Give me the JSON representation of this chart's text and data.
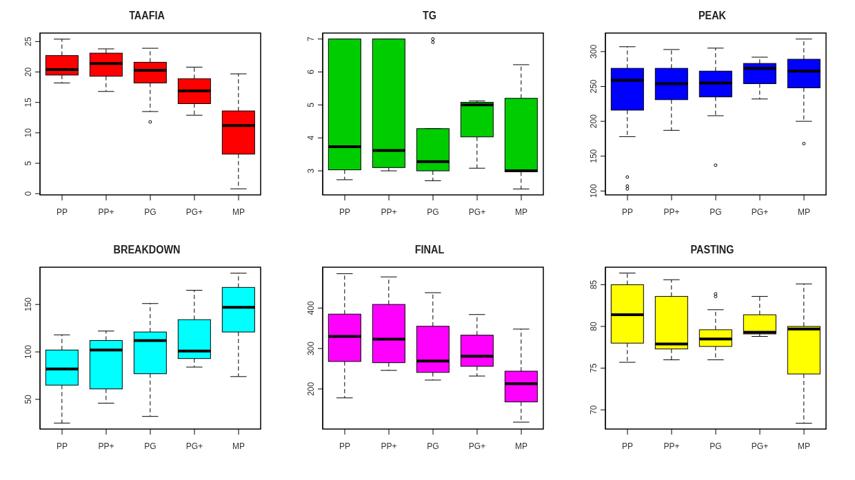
{
  "chart_data": [
    {
      "type": "box",
      "title": "TAAFIA",
      "categories": [
        "PP",
        "PP+",
        "PG",
        "PG+",
        "MP"
      ],
      "ylim": [
        -0.2,
        26.4
      ],
      "yticks": [
        0,
        5,
        10,
        15,
        20,
        25
      ],
      "grid": false,
      "legend": false,
      "series": [
        {
          "color": "#ff0000",
          "boxes": [
            {
              "low": 18.2,
              "q1": 19.5,
              "median": 20.4,
              "q3": 22.7,
              "high": 25.4
            },
            {
              "low": 16.8,
              "q1": 19.3,
              "median": 21.4,
              "q3": 23.1,
              "high": 23.8
            },
            {
              "low": 13.5,
              "q1": 18.2,
              "median": 20.3,
              "q3": 21.6,
              "high": 23.9,
              "outliers": [
                11.8
              ]
            },
            {
              "low": 12.9,
              "q1": 14.8,
              "median": 16.9,
              "q3": 18.9,
              "high": 20.8
            },
            {
              "low": 0.8,
              "q1": 6.5,
              "median": 11.2,
              "q3": 13.6,
              "high": 19.7
            }
          ]
        }
      ]
    },
    {
      "type": "box",
      "title": "TG",
      "categories": [
        "PP",
        "PP+",
        "PG",
        "PG+",
        "MP"
      ],
      "ylim": [
        2.27,
        7.18
      ],
      "yticks": [
        3,
        4,
        5,
        6,
        7
      ],
      "grid": false,
      "legend": false,
      "series": [
        {
          "color": "#00cd00",
          "boxes": [
            {
              "low": 2.73,
              "q1": 3.03,
              "median": 3.73,
              "q3": 7.0,
              "high": 7.0
            },
            {
              "low": 3.0,
              "q1": 3.1,
              "median": 3.62,
              "q3": 7.0,
              "high": 7.0
            },
            {
              "low": 2.7,
              "q1": 3.0,
              "median": 3.28,
              "q3": 4.28,
              "high": 4.28,
              "outliers": [
                6.9,
                7.0
              ]
            },
            {
              "low": 3.08,
              "q1": 4.03,
              "median": 5.0,
              "q3": 5.08,
              "high": 5.12
            },
            {
              "low": 2.45,
              "q1": 2.97,
              "median": 3.0,
              "q3": 5.2,
              "high": 6.22
            }
          ]
        }
      ]
    },
    {
      "type": "box",
      "title": "PEAK",
      "categories": [
        "PP",
        "PP+",
        "PG",
        "PG+",
        "MP"
      ],
      "ylim": [
        94.4,
        326.6
      ],
      "yticks": [
        100,
        150,
        200,
        250,
        300
      ],
      "grid": false,
      "legend": false,
      "series": [
        {
          "color": "#0000ff",
          "boxes": [
            {
              "low": 178,
              "q1": 216,
              "median": 259,
              "q3": 276,
              "high": 307,
              "outliers": [
                120,
                107,
                103
              ]
            },
            {
              "low": 187,
              "q1": 231,
              "median": 254,
              "q3": 276,
              "high": 303
            },
            {
              "low": 208,
              "q1": 235,
              "median": 255,
              "q3": 272,
              "high": 305,
              "outliers": [
                137
              ]
            },
            {
              "low": 232,
              "q1": 254,
              "median": 276,
              "q3": 283,
              "high": 292
            },
            {
              "low": 200,
              "q1": 248,
              "median": 272,
              "q3": 289,
              "high": 318,
              "outliers": [
                168
              ]
            }
          ]
        }
      ]
    },
    {
      "type": "box",
      "title": "BREAKDOWN",
      "categories": [
        "PP",
        "PP+",
        "PG",
        "PG+",
        "MP"
      ],
      "ylim": [
        18.7,
        189.3
      ],
      "yticks": [
        50,
        100,
        150
      ],
      "grid": false,
      "legend": false,
      "series": [
        {
          "color": "#00ffff",
          "boxes": [
            {
              "low": 25,
              "q1": 65,
              "median": 82,
              "q3": 102,
              "high": 118
            },
            {
              "low": 46,
              "q1": 61,
              "median": 102,
              "q3": 112,
              "high": 122
            },
            {
              "low": 32,
              "q1": 77,
              "median": 112,
              "q3": 121,
              "high": 151
            },
            {
              "low": 84,
              "q1": 93,
              "median": 101,
              "q3": 134,
              "high": 165
            },
            {
              "low": 74,
              "q1": 121,
              "median": 147,
              "q3": 168,
              "high": 183
            }
          ]
        }
      ]
    },
    {
      "type": "box",
      "title": "FINAL",
      "categories": [
        "PP",
        "PP+",
        "PG",
        "PG+",
        "MP"
      ],
      "ylim": [
        101,
        501
      ],
      "yticks": [
        200,
        300,
        400
      ],
      "grid": false,
      "legend": false,
      "series": [
        {
          "color": "#ff00ff",
          "boxes": [
            {
              "low": 178,
              "q1": 268,
              "median": 330,
              "q3": 385,
              "high": 485
            },
            {
              "low": 246,
              "q1": 265,
              "median": 323,
              "q3": 409,
              "high": 477
            },
            {
              "low": 222,
              "q1": 241,
              "median": 269,
              "q3": 355,
              "high": 438
            },
            {
              "low": 232,
              "q1": 256,
              "median": 281,
              "q3": 333,
              "high": 384
            },
            {
              "low": 118,
              "q1": 168,
              "median": 213,
              "q3": 244,
              "high": 348
            }
          ]
        }
      ]
    },
    {
      "type": "box",
      "title": "PASTING",
      "categories": [
        "PP",
        "PP+",
        "PG",
        "PG+",
        "MP"
      ],
      "ylim": [
        67.7,
        87.1
      ],
      "yticks": [
        70,
        75,
        80,
        85
      ],
      "grid": false,
      "legend": false,
      "series": [
        {
          "color": "#ffff00",
          "boxes": [
            {
              "low": 75.7,
              "q1": 78.0,
              "median": 81.4,
              "q3": 85.0,
              "high": 86.4
            },
            {
              "low": 76.0,
              "q1": 77.3,
              "median": 77.9,
              "q3": 83.6,
              "high": 85.6
            },
            {
              "low": 76.0,
              "q1": 77.6,
              "median": 78.5,
              "q3": 79.6,
              "high": 82.0,
              "outliers": [
                83.6,
                83.9
              ]
            },
            {
              "low": 78.8,
              "q1": 79.1,
              "median": 79.3,
              "q3": 81.4,
              "high": 83.6
            },
            {
              "low": 68.4,
              "q1": 74.3,
              "median": 79.7,
              "q3": 80.0,
              "high": 85.1
            }
          ]
        }
      ]
    }
  ]
}
